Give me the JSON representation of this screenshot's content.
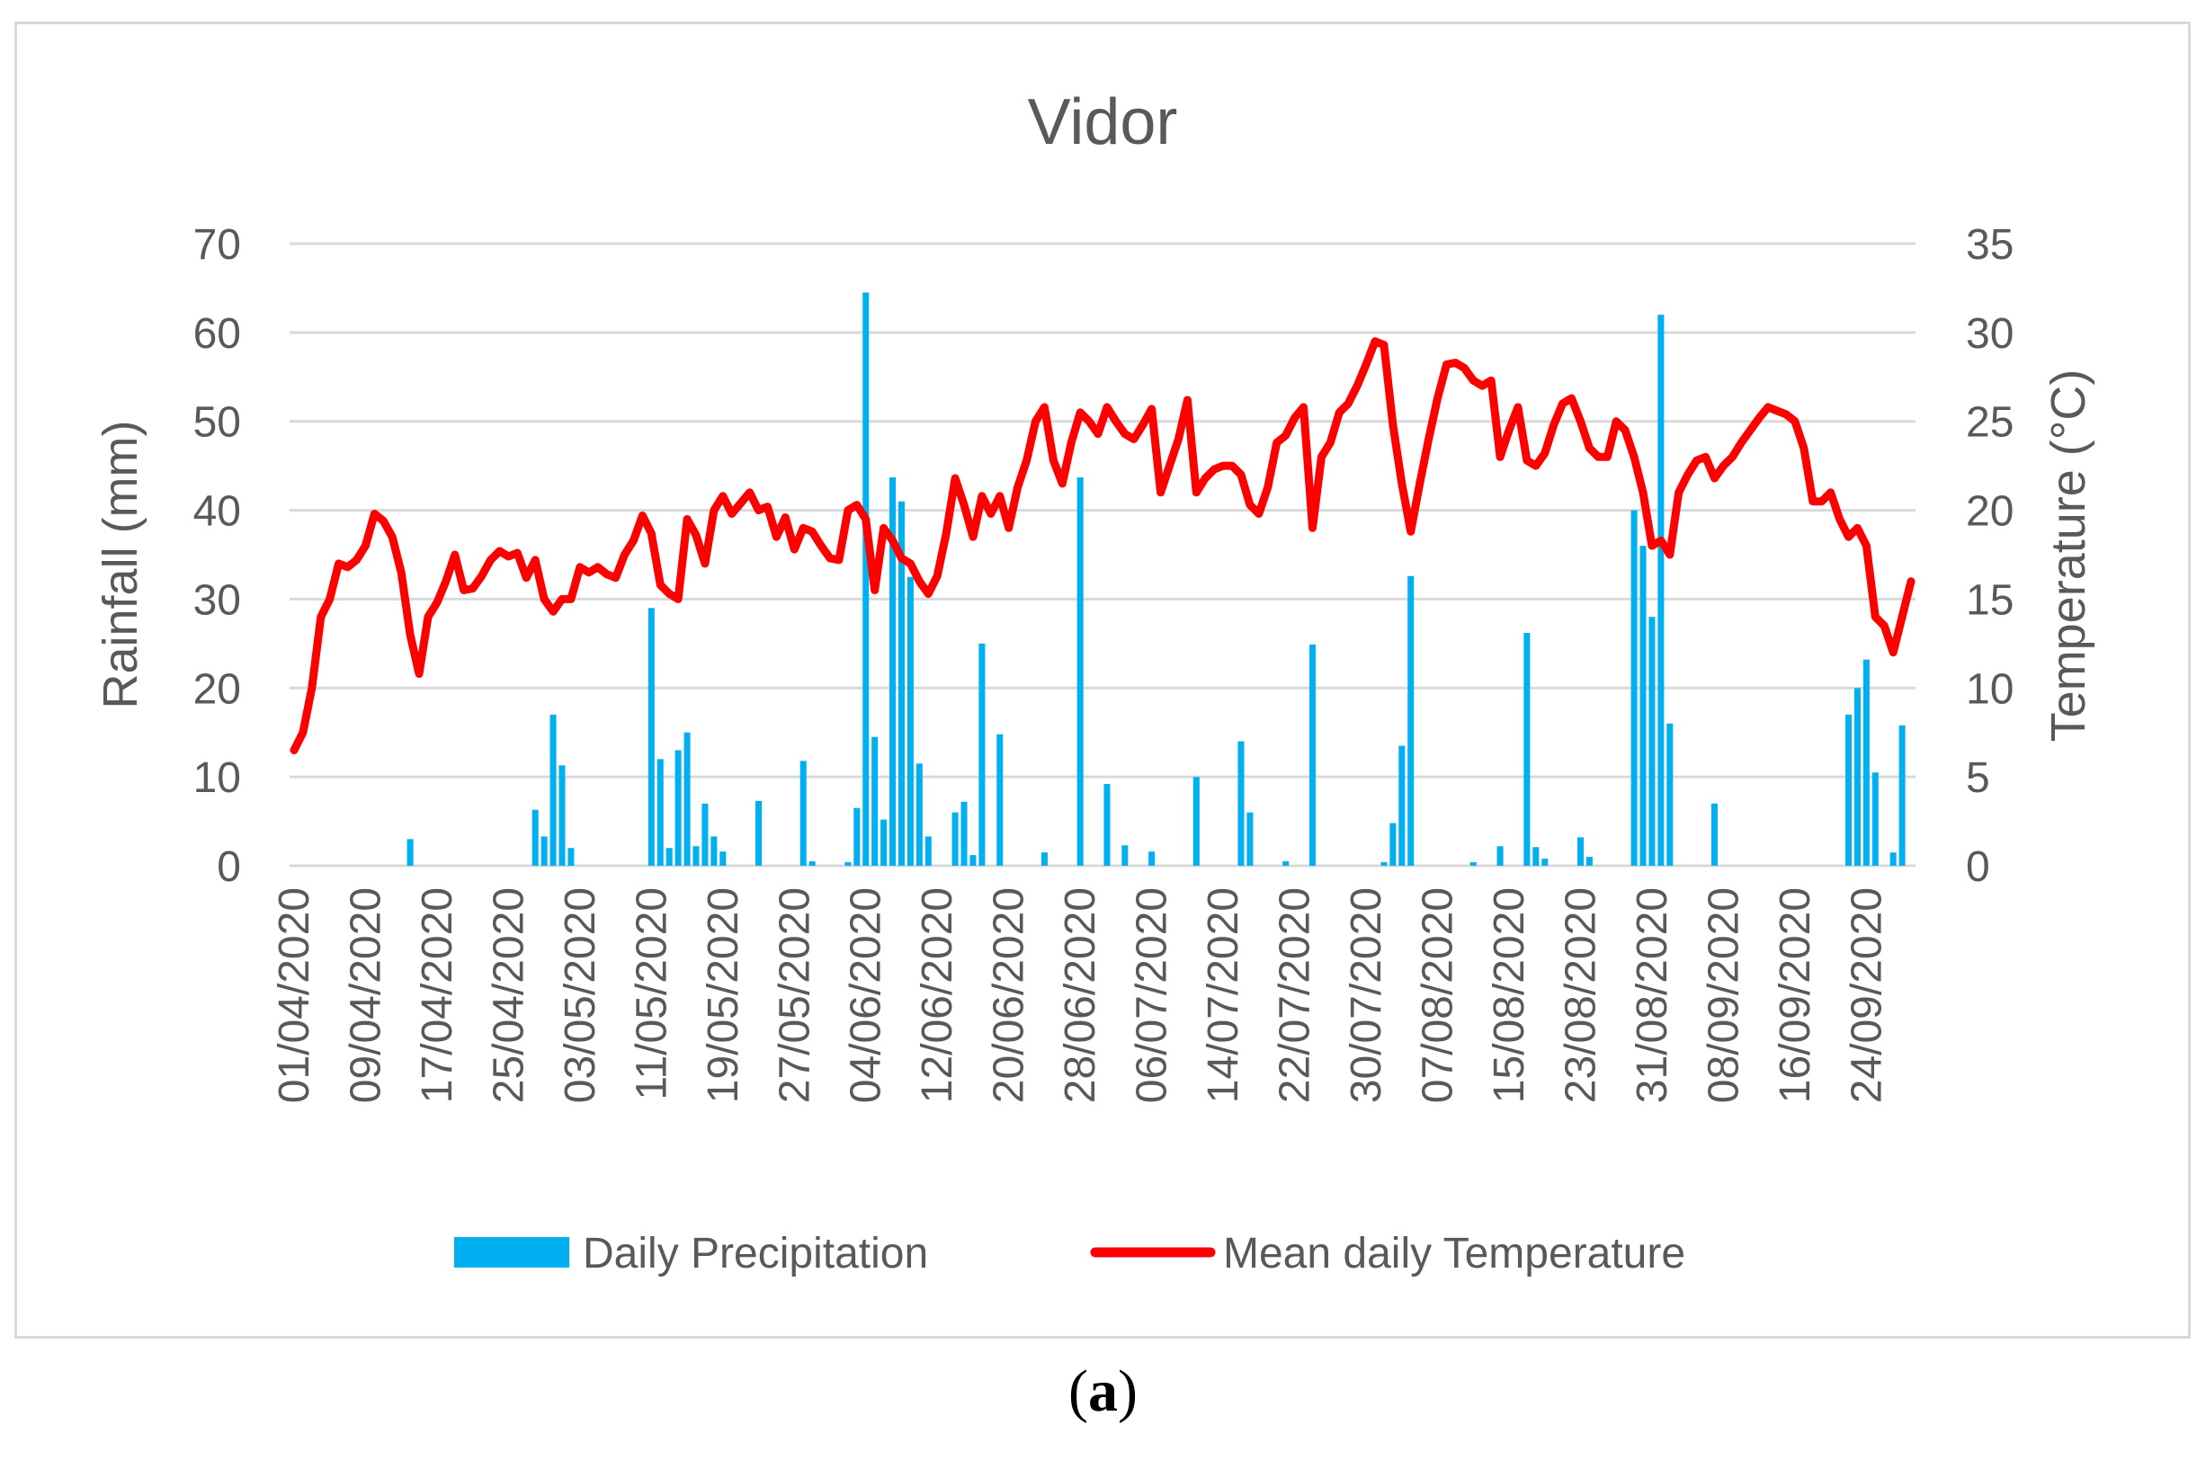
{
  "caption": {
    "open": "(",
    "letter": "a",
    "close": ")"
  },
  "chart_data": {
    "type": "bar+line",
    "title": "Vidor",
    "ylabel": "Rainfall (mm)",
    "y2label": "Temperature (°C)",
    "ylim": [
      0,
      70
    ],
    "y2lim": [
      0,
      35
    ],
    "yticks": [
      "0",
      "10",
      "20",
      "30",
      "40",
      "50",
      "60",
      "70"
    ],
    "y2ticks": [
      "0",
      "5",
      "10",
      "15",
      "20",
      "25",
      "30",
      "35"
    ],
    "xlim_days": [
      0,
      182
    ],
    "x_ticks": [
      {
        "day": 0,
        "label": "01/04/2020"
      },
      {
        "day": 8,
        "label": "09/04/2020"
      },
      {
        "day": 16,
        "label": "17/04/2020"
      },
      {
        "day": 24,
        "label": "25/04/2020"
      },
      {
        "day": 32,
        "label": "03/05/2020"
      },
      {
        "day": 40,
        "label": "11/05/2020"
      },
      {
        "day": 48,
        "label": "19/05/2020"
      },
      {
        "day": 56,
        "label": "27/05/2020"
      },
      {
        "day": 64,
        "label": "04/06/2020"
      },
      {
        "day": 72,
        "label": "12/06/2020"
      },
      {
        "day": 80,
        "label": "20/06/2020"
      },
      {
        "day": 88,
        "label": "28/06/2020"
      },
      {
        "day": 96,
        "label": "06/07/2020"
      },
      {
        "day": 104,
        "label": "14/07/2020"
      },
      {
        "day": 112,
        "label": "22/07/2020"
      },
      {
        "day": 120,
        "label": "30/07/2020"
      },
      {
        "day": 128,
        "label": "07/08/2020"
      },
      {
        "day": 136,
        "label": "15/08/2020"
      },
      {
        "day": 144,
        "label": "23/08/2020"
      },
      {
        "day": 152,
        "label": "31/08/2020"
      },
      {
        "day": 160,
        "label": "08/09/2020"
      },
      {
        "day": 168,
        "label": "16/09/2020"
      },
      {
        "day": 176,
        "label": "24/09/2020"
      }
    ],
    "legend": [
      {
        "name": "Daily Precipitation",
        "color": "#00b0f0"
      },
      {
        "name": "Mean daily Temperature",
        "color": "#ff0000"
      }
    ],
    "series": [
      {
        "name": "Daily Precipitation",
        "axis": "left",
        "kind": "bar",
        "color": "#00b0f0",
        "points": [
          [
            13,
            3
          ],
          [
            27,
            6.3
          ],
          [
            28,
            3.3
          ],
          [
            29,
            17
          ],
          [
            30,
            11.3
          ],
          [
            31,
            2
          ],
          [
            40,
            29
          ],
          [
            41,
            12
          ],
          [
            42,
            2
          ],
          [
            43,
            13
          ],
          [
            44,
            15
          ],
          [
            45,
            2.2
          ],
          [
            46,
            7
          ],
          [
            47,
            3.3
          ],
          [
            48,
            1.6
          ],
          [
            52,
            7.3
          ],
          [
            57,
            11.8
          ],
          [
            58,
            0.5
          ],
          [
            62,
            0.4
          ],
          [
            63,
            6.5
          ],
          [
            64,
            64.5
          ],
          [
            65,
            14.5
          ],
          [
            66,
            5.2
          ],
          [
            67,
            43.7
          ],
          [
            68,
            41
          ],
          [
            69,
            32.5
          ],
          [
            70,
            11.5
          ],
          [
            71,
            3.3
          ],
          [
            74,
            6
          ],
          [
            75,
            7.2
          ],
          [
            76,
            1.2
          ],
          [
            77,
            25
          ],
          [
            79,
            14.8
          ],
          [
            84,
            1.5
          ],
          [
            88,
            43.7
          ],
          [
            91,
            9.2
          ],
          [
            93,
            2.3
          ],
          [
            96,
            1.6
          ],
          [
            101,
            10
          ],
          [
            106,
            14
          ],
          [
            107,
            6
          ],
          [
            111,
            0.5
          ],
          [
            114,
            24.9
          ],
          [
            122,
            0.4
          ],
          [
            123,
            4.8
          ],
          [
            124,
            13.5
          ],
          [
            125,
            32.6
          ],
          [
            132,
            0.4
          ],
          [
            135,
            2.2
          ],
          [
            138,
            26.2
          ],
          [
            139,
            2.1
          ],
          [
            140,
            0.8
          ],
          [
            144,
            3.2
          ],
          [
            145,
            1
          ],
          [
            150,
            40
          ],
          [
            151,
            36
          ],
          [
            152,
            28
          ],
          [
            153,
            62
          ],
          [
            154,
            16
          ],
          [
            159,
            7
          ],
          [
            174,
            17
          ],
          [
            175,
            20
          ],
          [
            176,
            23.2
          ],
          [
            177,
            10.5
          ],
          [
            179,
            1.5
          ],
          [
            180,
            15.8
          ]
        ]
      },
      {
        "name": "Mean daily Temperature",
        "axis": "right",
        "kind": "line",
        "color": "#ff0000",
        "points": [
          [
            0,
            6.5
          ],
          [
            1,
            7.5
          ],
          [
            2,
            10
          ],
          [
            3,
            14
          ],
          [
            4,
            15
          ],
          [
            5,
            17
          ],
          [
            6,
            16.8
          ],
          [
            7,
            17.2
          ],
          [
            8,
            18
          ],
          [
            9,
            19.8
          ],
          [
            10,
            19.4
          ],
          [
            11,
            18.5
          ],
          [
            12,
            16.5
          ],
          [
            13,
            13
          ],
          [
            14,
            10.8
          ],
          [
            15,
            14
          ],
          [
            16,
            14.8
          ],
          [
            17,
            16
          ],
          [
            18,
            17.5
          ],
          [
            19,
            15.5
          ],
          [
            20,
            15.6
          ],
          [
            21,
            16.3
          ],
          [
            22,
            17.2
          ],
          [
            23,
            17.7
          ],
          [
            24,
            17.4
          ],
          [
            25,
            17.6
          ],
          [
            26,
            16.2
          ],
          [
            27,
            17.2
          ],
          [
            28,
            15
          ],
          [
            29,
            14.3
          ],
          [
            30,
            15
          ],
          [
            31,
            15
          ],
          [
            32,
            16.8
          ],
          [
            33,
            16.5
          ],
          [
            34,
            16.8
          ],
          [
            35,
            16.4
          ],
          [
            36,
            16.2
          ],
          [
            37,
            17.5
          ],
          [
            38,
            18.3
          ],
          [
            39,
            19.7
          ],
          [
            40,
            18.7
          ],
          [
            41,
            15.8
          ],
          [
            42,
            15.3
          ],
          [
            43,
            15
          ],
          [
            44,
            19.5
          ],
          [
            45,
            18.6
          ],
          [
            46,
            17
          ],
          [
            47,
            20
          ],
          [
            48,
            20.8
          ],
          [
            49,
            19.8
          ],
          [
            50,
            20.4
          ],
          [
            51,
            21
          ],
          [
            52,
            20
          ],
          [
            53,
            20.2
          ],
          [
            54,
            18.5
          ],
          [
            55,
            19.6
          ],
          [
            56,
            17.8
          ],
          [
            57,
            19
          ],
          [
            58,
            18.8
          ],
          [
            59,
            18
          ],
          [
            60,
            17.3
          ],
          [
            61,
            17.2
          ],
          [
            62,
            20
          ],
          [
            63,
            20.3
          ],
          [
            64,
            19.5
          ],
          [
            65,
            15.5
          ],
          [
            66,
            19
          ],
          [
            67,
            18.3
          ],
          [
            68,
            17.3
          ],
          [
            69,
            17
          ],
          [
            70,
            16
          ],
          [
            71,
            15.3
          ],
          [
            72,
            16.3
          ],
          [
            73,
            18.7
          ],
          [
            74,
            21.8
          ],
          [
            75,
            20.3
          ],
          [
            76,
            18.5
          ],
          [
            77,
            20.8
          ],
          [
            78,
            19.8
          ],
          [
            79,
            20.8
          ],
          [
            80,
            19
          ],
          [
            81,
            21.3
          ],
          [
            82,
            22.8
          ],
          [
            83,
            25
          ],
          [
            84,
            25.8
          ],
          [
            85,
            22.8
          ],
          [
            86,
            21.5
          ],
          [
            87,
            23.8
          ],
          [
            88,
            25.5
          ],
          [
            89,
            25
          ],
          [
            90,
            24.3
          ],
          [
            91,
            25.8
          ],
          [
            92,
            25
          ],
          [
            93,
            24.3
          ],
          [
            94,
            24
          ],
          [
            95,
            24.8
          ],
          [
            96,
            25.7
          ],
          [
            97,
            21
          ],
          [
            98,
            22.5
          ],
          [
            99,
            24
          ],
          [
            100,
            26.2
          ],
          [
            101,
            21
          ],
          [
            102,
            21.8
          ],
          [
            103,
            22.3
          ],
          [
            104,
            22.5
          ],
          [
            105,
            22.5
          ],
          [
            106,
            22
          ],
          [
            107,
            20.3
          ],
          [
            108,
            19.8
          ],
          [
            109,
            21.3
          ],
          [
            110,
            23.8
          ],
          [
            111,
            24.2
          ],
          [
            112,
            25.2
          ],
          [
            113,
            25.8
          ],
          [
            114,
            19
          ],
          [
            115,
            23
          ],
          [
            116,
            23.8
          ],
          [
            117,
            25.5
          ],
          [
            118,
            26
          ],
          [
            119,
            27
          ],
          [
            120,
            28.2
          ],
          [
            121,
            29.5
          ],
          [
            122,
            29.3
          ],
          [
            123,
            24.8
          ],
          [
            124,
            21.5
          ],
          [
            125,
            18.8
          ],
          [
            126,
            21.5
          ],
          [
            127,
            24
          ],
          [
            128,
            26.3
          ],
          [
            129,
            28.2
          ],
          [
            130,
            28.3
          ],
          [
            131,
            28
          ],
          [
            132,
            27.3
          ],
          [
            133,
            27
          ],
          [
            134,
            27.3
          ],
          [
            135,
            23
          ],
          [
            136,
            24.5
          ],
          [
            137,
            25.8
          ],
          [
            138,
            22.8
          ],
          [
            139,
            22.5
          ],
          [
            140,
            23.2
          ],
          [
            141,
            24.8
          ],
          [
            142,
            26
          ],
          [
            143,
            26.3
          ],
          [
            144,
            25
          ],
          [
            145,
            23.5
          ],
          [
            146,
            23
          ],
          [
            147,
            23
          ],
          [
            148,
            25
          ],
          [
            149,
            24.5
          ],
          [
            150,
            23
          ],
          [
            151,
            21
          ],
          [
            152,
            18
          ],
          [
            153,
            18.3
          ],
          [
            154,
            17.5
          ],
          [
            155,
            21
          ],
          [
            156,
            22
          ],
          [
            157,
            22.8
          ],
          [
            158,
            23
          ],
          [
            159,
            21.8
          ],
          [
            160,
            22.5
          ],
          [
            161,
            23
          ],
          [
            162,
            23.8
          ],
          [
            163,
            24.5
          ],
          [
            164,
            25.2
          ],
          [
            165,
            25.8
          ],
          [
            166,
            25.6
          ],
          [
            167,
            25.4
          ],
          [
            168,
            25
          ],
          [
            169,
            23.5
          ],
          [
            170,
            20.5
          ],
          [
            171,
            20.5
          ],
          [
            172,
            21
          ],
          [
            173,
            19.5
          ],
          [
            174,
            18.5
          ],
          [
            175,
            19
          ],
          [
            176,
            18
          ],
          [
            177,
            14
          ],
          [
            178,
            13.5
          ],
          [
            179,
            12
          ],
          [
            180,
            14
          ],
          [
            181,
            16
          ]
        ]
      }
    ]
  }
}
